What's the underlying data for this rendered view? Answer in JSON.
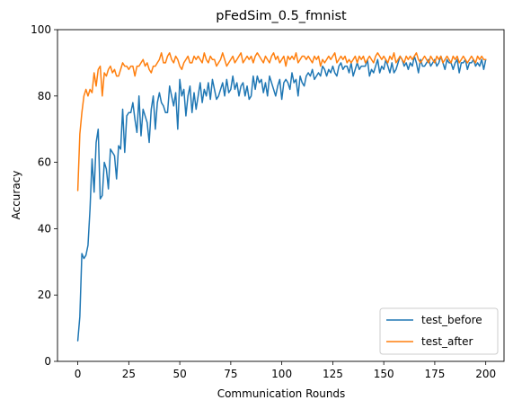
{
  "chart_data": {
    "type": "line",
    "title": "pFedSim_0.5_fmnist",
    "xlabel": "Communication Rounds",
    "ylabel": "Accuracy",
    "xlim": [
      -9.95,
      208.95
    ],
    "ylim": [
      0,
      100
    ],
    "xticks": [
      0,
      25,
      50,
      75,
      100,
      125,
      150,
      175,
      200
    ],
    "yticks": [
      0,
      20,
      40,
      60,
      80,
      100
    ],
    "legend_position": "lower right",
    "grid": false,
    "series": [
      {
        "name": "test_before",
        "color": "#1f77b4",
        "values": [
          6.2,
          13.5,
          32.5,
          31,
          32,
          35,
          46,
          61,
          51,
          66,
          70,
          49,
          50,
          60,
          58,
          52,
          64,
          63,
          62,
          55,
          65,
          64,
          76,
          63,
          74,
          75,
          75,
          78,
          73,
          69,
          80,
          68,
          76,
          74,
          72,
          66,
          76,
          80,
          70,
          78,
          81,
          78,
          77,
          75,
          75,
          83,
          80,
          77,
          81,
          70,
          85,
          80,
          82,
          74,
          80,
          83,
          75,
          81,
          76,
          80,
          84,
          78,
          82,
          80,
          84,
          79,
          85,
          82,
          79,
          80,
          82,
          84,
          80,
          85,
          81,
          82,
          86,
          82,
          84,
          80,
          83,
          84,
          80,
          83,
          79,
          80,
          86,
          82,
          86,
          84,
          85,
          81,
          84,
          80,
          86,
          84,
          82,
          80,
          83,
          85,
          79,
          84,
          85,
          84,
          82,
          87,
          84,
          85,
          80,
          86,
          84,
          83,
          86,
          87,
          86,
          88,
          85,
          86,
          87,
          86,
          89,
          88,
          86,
          88,
          87,
          89,
          87,
          86,
          89,
          90,
          88,
          89,
          89,
          87,
          90,
          86,
          88,
          90,
          88,
          89,
          89,
          89,
          91,
          86,
          88,
          87,
          89,
          91,
          87,
          89,
          88,
          91,
          89,
          87,
          90,
          87,
          88,
          90,
          92,
          91,
          89,
          90,
          88,
          90,
          89,
          92,
          90,
          87,
          91,
          89,
          89,
          90,
          91,
          89,
          90,
          91,
          89,
          90,
          92,
          90,
          88,
          91,
          90,
          90,
          88,
          90,
          91,
          87,
          90,
          90,
          91,
          88,
          90,
          90,
          91,
          89,
          90,
          89,
          91,
          88,
          91
        ]
      },
      {
        "name": "test_after",
        "color": "#ff7f0e",
        "values": [
          51.5,
          68.5,
          75,
          80,
          82,
          80,
          82,
          81,
          87,
          83,
          88,
          89,
          80,
          87,
          86,
          88,
          89,
          87,
          88,
          86,
          86,
          88,
          90,
          89,
          89,
          88,
          89,
          89,
          86,
          89,
          89,
          90,
          91,
          89,
          90,
          88,
          87,
          89,
          89,
          90,
          91,
          93,
          90,
          90,
          92,
          93,
          91,
          90,
          92,
          91,
          89,
          88,
          90,
          91,
          92,
          90,
          90,
          92,
          91,
          92,
          91,
          90,
          93,
          91,
          90,
          92,
          91,
          91,
          89,
          90,
          91,
          93,
          91,
          89,
          90,
          91,
          92,
          90,
          91,
          92,
          93,
          90,
          91,
          92,
          91,
          92,
          90,
          92,
          93,
          92,
          91,
          90,
          92,
          91,
          90,
          92,
          93,
          91,
          92,
          90,
          91,
          92,
          89,
          92,
          91,
          92,
          91,
          93,
          90,
          91,
          92,
          92,
          91,
          92,
          91,
          90,
          92,
          91,
          92,
          89,
          91,
          90,
          91,
          92,
          91,
          92,
          93,
          90,
          91,
          92,
          91,
          92,
          90,
          91,
          90,
          91,
          92,
          90,
          92,
          91,
          92,
          90,
          91,
          92,
          91,
          90,
          92,
          93,
          92,
          91,
          92,
          91,
          90,
          92,
          91,
          93,
          90,
          91,
          92,
          91,
          90,
          92,
          91,
          92,
          91,
          92,
          93,
          91,
          90,
          91,
          92,
          91,
          90,
          92,
          91,
          90,
          92,
          91,
          92,
          90,
          91,
          92,
          91,
          90,
          92,
          91,
          92,
          90,
          91,
          92,
          91,
          90,
          91,
          92,
          91,
          90,
          92,
          91,
          92,
          91,
          91
        ]
      }
    ]
  }
}
